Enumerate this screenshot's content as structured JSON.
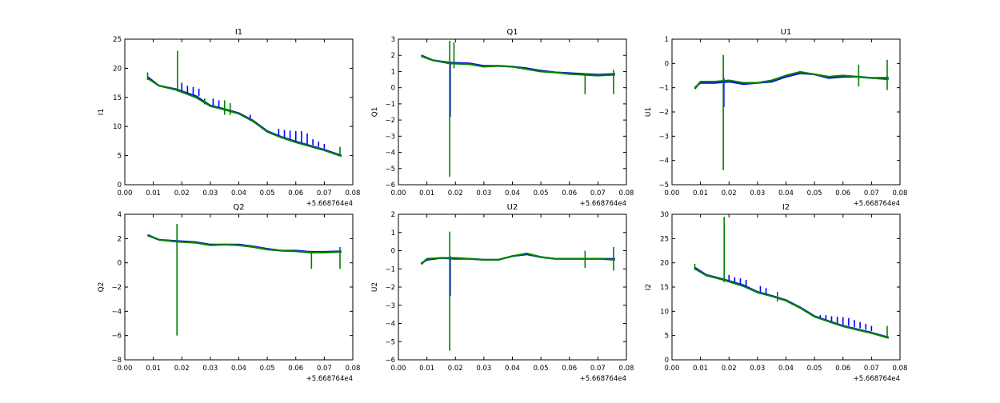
{
  "figure": {
    "background": "#ffffff"
  },
  "colors": {
    "series_a": "#0000ff",
    "series_b": "#008000",
    "axes": "#000000"
  },
  "chart_data": [
    {
      "type": "line",
      "title": "I1",
      "ylabel": "I1",
      "xlabel": "",
      "offset_label": "+5.668764e4",
      "xlim": [
        0.0,
        0.08
      ],
      "ylim": [
        0,
        25
      ],
      "xticks": [
        0.0,
        0.01,
        0.02,
        0.03,
        0.04,
        0.05,
        0.06,
        0.07,
        0.08
      ],
      "xtick_labels": [
        "0.00",
        "0.01",
        "0.02",
        "0.03",
        "0.04",
        "0.05",
        "0.06",
        "0.07",
        "0.08"
      ],
      "yticks": [
        0,
        5,
        10,
        15,
        20,
        25
      ],
      "ytick_labels": [
        "0",
        "5",
        "10",
        "15",
        "20",
        "25"
      ],
      "series": [
        {
          "color": "#0000ff",
          "x": [
            0.008,
            0.012,
            0.018,
            0.025,
            0.03,
            0.035,
            0.04,
            0.045,
            0.05,
            0.055,
            0.06,
            0.065,
            0.07,
            0.076
          ],
          "y": [
            18.5,
            17.0,
            16.4,
            15.2,
            13.6,
            13.0,
            12.3,
            11.0,
            9.2,
            8.2,
            7.4,
            6.7,
            6.0,
            5.0
          ],
          "spikes": [
            [
              0.02,
              16.0,
              17.5
            ],
            [
              0.022,
              15.8,
              17.0
            ],
            [
              0.024,
              15.5,
              16.8
            ],
            [
              0.026,
              15.2,
              16.5
            ],
            [
              0.031,
              13.4,
              14.8
            ],
            [
              0.033,
              13.2,
              14.5
            ],
            [
              0.044,
              11.0,
              12.0
            ],
            [
              0.054,
              8.4,
              9.6
            ],
            [
              0.056,
              8.0,
              9.4
            ],
            [
              0.058,
              7.8,
              9.3
            ],
            [
              0.06,
              7.5,
              9.2
            ],
            [
              0.062,
              7.2,
              9.2
            ],
            [
              0.064,
              7.0,
              8.8
            ],
            [
              0.066,
              6.8,
              7.8
            ],
            [
              0.068,
              6.5,
              7.4
            ],
            [
              0.07,
              6.2,
              7.0
            ]
          ]
        },
        {
          "color": "#008000",
          "x": [
            0.008,
            0.012,
            0.018,
            0.025,
            0.03,
            0.035,
            0.04,
            0.045,
            0.05,
            0.055,
            0.06,
            0.065,
            0.07,
            0.076
          ],
          "y": [
            18.3,
            17.0,
            16.3,
            15.0,
            13.5,
            12.9,
            12.2,
            10.9,
            9.1,
            8.1,
            7.3,
            6.6,
            5.9,
            4.9
          ],
          "spikes": [
            [
              0.008,
              18.0,
              19.3
            ],
            [
              0.0185,
              16.0,
              23.0
            ],
            [
              0.028,
              13.8,
              14.8
            ],
            [
              0.035,
              12.0,
              14.5
            ],
            [
              0.037,
              12.0,
              14.0
            ],
            [
              0.0755,
              5.0,
              6.5
            ]
          ]
        }
      ]
    },
    {
      "type": "line",
      "title": "Q1",
      "ylabel": "Q1",
      "xlabel": "",
      "offset_label": "+5.668764e4",
      "xlim": [
        0.0,
        0.08
      ],
      "ylim": [
        -6,
        3
      ],
      "xticks": [
        0.0,
        0.01,
        0.02,
        0.03,
        0.04,
        0.05,
        0.06,
        0.07,
        0.08
      ],
      "xtick_labels": [
        "0.00",
        "0.01",
        "0.02",
        "0.03",
        "0.04",
        "0.05",
        "0.06",
        "0.07",
        "0.08"
      ],
      "yticks": [
        -6,
        -5,
        -4,
        -3,
        -2,
        -1,
        0,
        1,
        2,
        3
      ],
      "ytick_labels": [
        "−6",
        "−5",
        "−4",
        "−3",
        "−2",
        "−1",
        "0",
        "1",
        "2",
        "3"
      ],
      "series": [
        {
          "color": "#0000ff",
          "x": [
            0.008,
            0.012,
            0.018,
            0.025,
            0.03,
            0.035,
            0.04,
            0.045,
            0.05,
            0.055,
            0.06,
            0.065,
            0.07,
            0.076
          ],
          "y": [
            2.0,
            1.7,
            1.55,
            1.5,
            1.35,
            1.35,
            1.3,
            1.2,
            1.05,
            0.95,
            0.9,
            0.85,
            0.8,
            0.85
          ],
          "spikes": [
            [
              0.0182,
              -1.8,
              1.5
            ]
          ]
        },
        {
          "color": "#008000",
          "x": [
            0.008,
            0.012,
            0.018,
            0.025,
            0.03,
            0.035,
            0.04,
            0.045,
            0.05,
            0.055,
            0.06,
            0.065,
            0.07,
            0.076
          ],
          "y": [
            1.95,
            1.7,
            1.5,
            1.45,
            1.3,
            1.35,
            1.3,
            1.15,
            1.0,
            0.95,
            0.85,
            0.8,
            0.75,
            0.8
          ],
          "spikes": [
            [
              0.018,
              -5.5,
              2.9
            ],
            [
              0.0195,
              1.2,
              2.8
            ],
            [
              0.0655,
              -0.4,
              0.9
            ],
            [
              0.0755,
              -0.4,
              1.1
            ]
          ]
        }
      ]
    },
    {
      "type": "line",
      "title": "U1",
      "ylabel": "U1",
      "xlabel": "",
      "offset_label": "+5.668764e4",
      "xlim": [
        0.0,
        0.08
      ],
      "ylim": [
        -5,
        1
      ],
      "xticks": [
        0.0,
        0.01,
        0.02,
        0.03,
        0.04,
        0.05,
        0.06,
        0.07,
        0.08
      ],
      "xtick_labels": [
        "0.00",
        "0.01",
        "0.02",
        "0.03",
        "0.04",
        "0.05",
        "0.06",
        "0.07",
        "0.08"
      ],
      "yticks": [
        -5,
        -4,
        -3,
        -2,
        -1,
        0,
        1
      ],
      "ytick_labels": [
        "−5",
        "−4",
        "−3",
        "−2",
        "−1",
        "0",
        "1"
      ],
      "series": [
        {
          "color": "#0000ff",
          "x": [
            0.008,
            0.01,
            0.015,
            0.02,
            0.025,
            0.03,
            0.035,
            0.04,
            0.045,
            0.05,
            0.055,
            0.06,
            0.065,
            0.07,
            0.076
          ],
          "y": [
            -1.0,
            -0.8,
            -0.8,
            -0.75,
            -0.85,
            -0.8,
            -0.75,
            -0.55,
            -0.4,
            -0.45,
            -0.6,
            -0.55,
            -0.55,
            -0.6,
            -0.6
          ],
          "spikes": [
            [
              0.0182,
              -1.8,
              -0.6
            ]
          ]
        },
        {
          "color": "#008000",
          "x": [
            0.008,
            0.01,
            0.015,
            0.02,
            0.025,
            0.03,
            0.035,
            0.04,
            0.045,
            0.05,
            0.055,
            0.06,
            0.065,
            0.07,
            0.076
          ],
          "y": [
            -1.05,
            -0.75,
            -0.75,
            -0.7,
            -0.8,
            -0.8,
            -0.7,
            -0.5,
            -0.35,
            -0.45,
            -0.55,
            -0.5,
            -0.55,
            -0.6,
            -0.65
          ],
          "spikes": [
            [
              0.018,
              -4.4,
              0.35
            ],
            [
              0.0655,
              -0.95,
              -0.05
            ],
            [
              0.0755,
              -1.1,
              0.15
            ]
          ]
        }
      ]
    },
    {
      "type": "line",
      "title": "Q2",
      "ylabel": "Q2",
      "xlabel": "",
      "offset_label": "+5.668764e4",
      "xlim": [
        0.0,
        0.08
      ],
      "ylim": [
        -8,
        4
      ],
      "xticks": [
        0.0,
        0.01,
        0.02,
        0.03,
        0.04,
        0.05,
        0.06,
        0.07,
        0.08
      ],
      "xtick_labels": [
        "0.00",
        "0.01",
        "0.02",
        "0.03",
        "0.04",
        "0.05",
        "0.06",
        "0.07",
        "0.08"
      ],
      "yticks": [
        -8,
        -6,
        -4,
        -2,
        0,
        2,
        4
      ],
      "ytick_labels": [
        "−8",
        "−6",
        "−4",
        "−2",
        "0",
        "2",
        "4"
      ],
      "series": [
        {
          "color": "#0000ff",
          "x": [
            0.008,
            0.012,
            0.018,
            0.025,
            0.03,
            0.035,
            0.04,
            0.045,
            0.05,
            0.055,
            0.06,
            0.065,
            0.07,
            0.076
          ],
          "y": [
            2.3,
            1.9,
            1.8,
            1.7,
            1.5,
            1.5,
            1.5,
            1.35,
            1.15,
            1.0,
            1.0,
            0.9,
            0.9,
            0.95
          ],
          "spikes": []
        },
        {
          "color": "#008000",
          "x": [
            0.008,
            0.012,
            0.018,
            0.025,
            0.03,
            0.035,
            0.04,
            0.045,
            0.05,
            0.055,
            0.06,
            0.065,
            0.07,
            0.076
          ],
          "y": [
            2.25,
            1.9,
            1.75,
            1.65,
            1.45,
            1.5,
            1.45,
            1.3,
            1.1,
            1.0,
            0.95,
            0.85,
            0.85,
            0.9
          ],
          "spikes": [
            [
              0.0183,
              -6.0,
              3.2
            ],
            [
              0.0655,
              -0.5,
              1.0
            ],
            [
              0.0755,
              -0.5,
              1.3
            ]
          ]
        }
      ]
    },
    {
      "type": "line",
      "title": "U2",
      "ylabel": "U2",
      "xlabel": "",
      "offset_label": "+5.668764e4",
      "xlim": [
        0.0,
        0.08
      ],
      "ylim": [
        -6,
        2
      ],
      "xticks": [
        0.0,
        0.01,
        0.02,
        0.03,
        0.04,
        0.05,
        0.06,
        0.07,
        0.08
      ],
      "xtick_labels": [
        "0.00",
        "0.01",
        "0.02",
        "0.03",
        "0.04",
        "0.05",
        "0.06",
        "0.07",
        "0.08"
      ],
      "yticks": [
        -6,
        -5,
        -4,
        -3,
        -2,
        -1,
        0,
        1,
        2
      ],
      "ytick_labels": [
        "−6",
        "−5",
        "−4",
        "−3",
        "−2",
        "−1",
        "0",
        "1",
        "2"
      ],
      "series": [
        {
          "color": "#0000ff",
          "x": [
            0.008,
            0.01,
            0.015,
            0.02,
            0.025,
            0.03,
            0.035,
            0.04,
            0.045,
            0.05,
            0.055,
            0.06,
            0.065,
            0.07,
            0.076
          ],
          "y": [
            -0.7,
            -0.5,
            -0.4,
            -0.45,
            -0.45,
            -0.5,
            -0.5,
            -0.3,
            -0.2,
            -0.35,
            -0.45,
            -0.45,
            -0.45,
            -0.45,
            -0.45
          ],
          "spikes": [
            [
              0.0182,
              -2.5,
              -0.3
            ]
          ]
        },
        {
          "color": "#008000",
          "x": [
            0.008,
            0.01,
            0.015,
            0.02,
            0.025,
            0.03,
            0.035,
            0.04,
            0.045,
            0.05,
            0.055,
            0.06,
            0.065,
            0.07,
            0.076
          ],
          "y": [
            -0.75,
            -0.45,
            -0.4,
            -0.4,
            -0.45,
            -0.5,
            -0.5,
            -0.3,
            -0.15,
            -0.35,
            -0.45,
            -0.45,
            -0.45,
            -0.45,
            -0.5
          ],
          "spikes": [
            [
              0.018,
              -5.5,
              1.05
            ],
            [
              0.0655,
              -0.95,
              0.0
            ],
            [
              0.0755,
              -1.1,
              0.2
            ]
          ]
        }
      ]
    },
    {
      "type": "line",
      "title": "I2",
      "ylabel": "I2",
      "xlabel": "",
      "offset_label": "+5.668764e4",
      "xlim": [
        0.0,
        0.08
      ],
      "ylim": [
        0,
        30
      ],
      "xticks": [
        0.0,
        0.01,
        0.02,
        0.03,
        0.04,
        0.05,
        0.06,
        0.07,
        0.08
      ],
      "xtick_labels": [
        "0.00",
        "0.01",
        "0.02",
        "0.03",
        "0.04",
        "0.05",
        "0.06",
        "0.07",
        "0.08"
      ],
      "yticks": [
        0,
        5,
        10,
        15,
        20,
        25,
        30
      ],
      "ytick_labels": [
        "0",
        "5",
        "10",
        "15",
        "20",
        "25",
        "30"
      ],
      "series": [
        {
          "color": "#0000ff",
          "x": [
            0.008,
            0.012,
            0.018,
            0.025,
            0.03,
            0.035,
            0.04,
            0.045,
            0.05,
            0.055,
            0.06,
            0.065,
            0.07,
            0.076
          ],
          "y": [
            19.0,
            17.5,
            16.6,
            15.4,
            14.0,
            13.2,
            12.3,
            10.8,
            9.0,
            8.0,
            7.0,
            6.3,
            5.6,
            4.6
          ],
          "spikes": [
            [
              0.02,
              16.0,
              17.5
            ],
            [
              0.022,
              15.6,
              17.0
            ],
            [
              0.024,
              15.3,
              16.8
            ],
            [
              0.026,
              15.0,
              16.5
            ],
            [
              0.031,
              13.8,
              15.2
            ],
            [
              0.033,
              13.4,
              14.8
            ],
            [
              0.052,
              8.5,
              9.2
            ],
            [
              0.054,
              8.1,
              9.2
            ],
            [
              0.056,
              7.8,
              9.0
            ],
            [
              0.058,
              7.5,
              8.9
            ],
            [
              0.06,
              7.2,
              8.8
            ],
            [
              0.062,
              7.0,
              8.6
            ],
            [
              0.064,
              6.7,
              8.2
            ],
            [
              0.066,
              6.5,
              7.8
            ],
            [
              0.068,
              6.2,
              7.4
            ],
            [
              0.07,
              5.9,
              7.0
            ]
          ]
        },
        {
          "color": "#008000",
          "x": [
            0.008,
            0.012,
            0.018,
            0.025,
            0.03,
            0.035,
            0.04,
            0.045,
            0.05,
            0.055,
            0.06,
            0.065,
            0.07,
            0.076
          ],
          "y": [
            18.8,
            17.4,
            16.5,
            15.2,
            13.9,
            13.1,
            12.2,
            10.7,
            8.9,
            7.9,
            6.9,
            6.2,
            5.5,
            4.5
          ],
          "spikes": [
            [
              0.008,
              18.5,
              19.8
            ],
            [
              0.0183,
              16.0,
              29.5
            ],
            [
              0.037,
              12.0,
              14.0
            ],
            [
              0.0755,
              4.5,
              7.0
            ]
          ]
        }
      ]
    }
  ]
}
